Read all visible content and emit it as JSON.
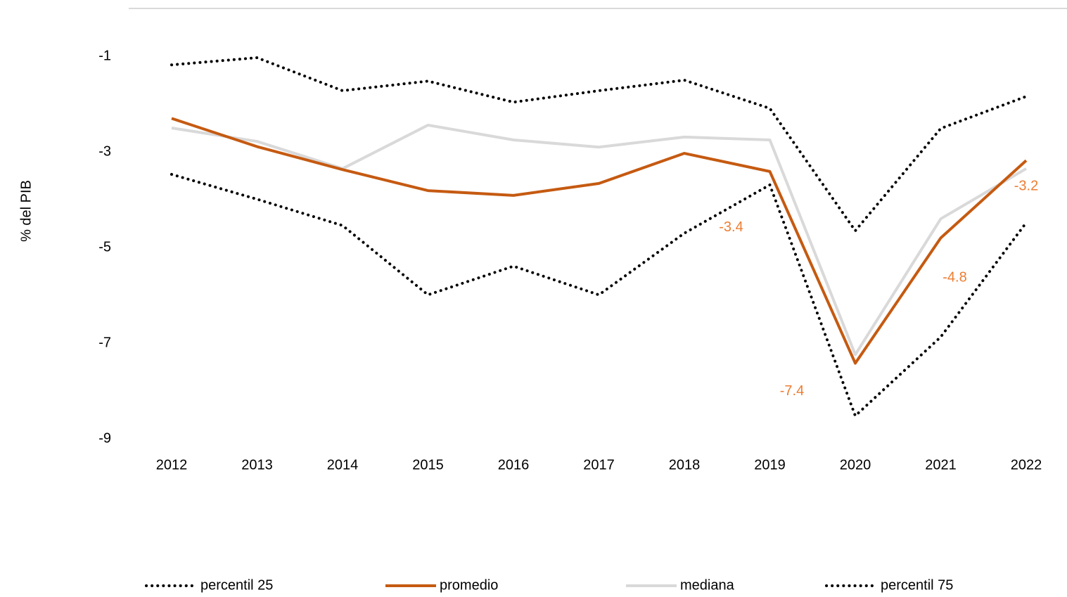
{
  "chart_data": {
    "type": "line",
    "y_label": "% del PIB",
    "categories": [
      "2012",
      "2013",
      "2014",
      "2015",
      "2016",
      "2017",
      "2018",
      "2019",
      "2020",
      "2021",
      "2022"
    ],
    "ylim": [
      -9,
      0
    ],
    "yticks": [
      -1,
      -3,
      -5,
      -7,
      -9
    ],
    "series": [
      {
        "name": "percentil 25",
        "color": "#000000",
        "style": "dotted",
        "values": [
          -3.47,
          -3.99,
          -4.54,
          -5.99,
          -5.39,
          -5.99,
          -4.7,
          -3.69,
          -8.52,
          -6.87,
          -4.48
        ]
      },
      {
        "name": "promedio",
        "color": "#c55a11",
        "style": "solid",
        "values": [
          -2.3,
          -2.89,
          -3.37,
          -3.81,
          -3.91,
          -3.66,
          -3.03,
          -3.41,
          -7.42,
          -4.8,
          -3.18
        ],
        "value_labels": [
          null,
          null,
          null,
          null,
          null,
          null,
          null,
          "-3.4",
          "-7.4",
          "-4.8",
          "-3.2"
        ],
        "label_color": "#ed7d31"
      },
      {
        "name": "mediana",
        "color": "#d9d9d9",
        "style": "solid",
        "values": [
          -2.5,
          -2.78,
          -3.35,
          -2.44,
          -2.75,
          -2.9,
          -2.69,
          -2.75,
          -7.24,
          -4.4,
          -3.35
        ]
      },
      {
        "name": "percentil 75",
        "color": "#000000",
        "style": "dotted",
        "values": [
          -1.18,
          -1.03,
          -1.72,
          -1.52,
          -1.96,
          -1.72,
          -1.5,
          -2.09,
          -4.65,
          -2.51,
          -1.84
        ]
      }
    ]
  }
}
